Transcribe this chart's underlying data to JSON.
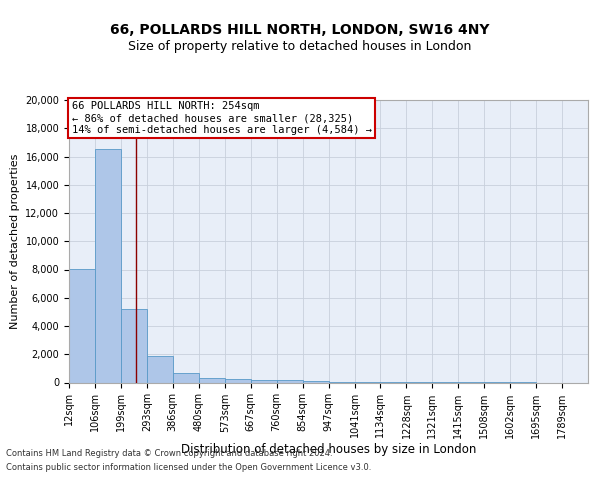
{
  "title1": "66, POLLARDS HILL NORTH, LONDON, SW16 4NY",
  "title2": "Size of property relative to detached houses in London",
  "xlabel": "Distribution of detached houses by size in London",
  "ylabel": "Number of detached properties",
  "bin_edges": [
    12,
    106,
    199,
    293,
    386,
    480,
    573,
    667,
    760,
    854,
    947,
    1041,
    1134,
    1228,
    1321,
    1415,
    1508,
    1602,
    1695,
    1789,
    1882
  ],
  "bar_heights": [
    8050,
    16500,
    5200,
    1850,
    700,
    350,
    250,
    200,
    150,
    80,
    30,
    10,
    5,
    3,
    2,
    1,
    1,
    1,
    0,
    0
  ],
  "bar_color": "#aec6e8",
  "bar_edge_color": "#5899c8",
  "property_line_x": 254,
  "property_line_color": "#8b0000",
  "annotation_line1": "66 POLLARDS HILL NORTH: 254sqm",
  "annotation_line2": "← 86% of detached houses are smaller (28,325)",
  "annotation_line3": "14% of semi-detached houses are larger (4,584) →",
  "annotation_box_color": "#ffffff",
  "annotation_box_edge_color": "#cc0000",
  "ylim": [
    0,
    20000
  ],
  "yticks": [
    0,
    2000,
    4000,
    6000,
    8000,
    10000,
    12000,
    14000,
    16000,
    18000,
    20000
  ],
  "grid_color": "#c8d0dc",
  "background_color": "#e8eef8",
  "footer_line1": "Contains HM Land Registry data © Crown copyright and database right 2024.",
  "footer_line2": "Contains public sector information licensed under the Open Government Licence v3.0.",
  "title1_fontsize": 10,
  "title2_fontsize": 9,
  "tick_label_fontsize": 7,
  "ylabel_fontsize": 8,
  "xlabel_fontsize": 8.5,
  "annotation_fontsize": 7.5,
  "footer_fontsize": 6
}
